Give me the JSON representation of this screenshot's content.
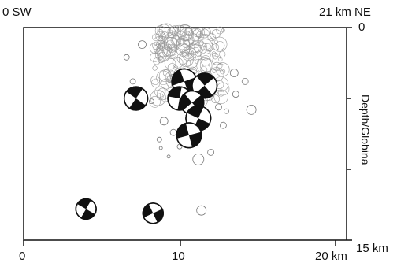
{
  "labels": {
    "top_left": "0 SW",
    "top_right": "21 km NE",
    "right_axis_title": "Depth/Globina",
    "depth_top": "0",
    "depth_bottom": "15 km",
    "x_ticks": [
      "0",
      "10",
      "20 km"
    ]
  },
  "chart_data": {
    "type": "scatter",
    "xlabel": "",
    "ylabel": "Depth/Globina",
    "xlim": [
      0,
      21
    ],
    "ylim": [
      0,
      15
    ],
    "colors": {
      "ink": "#111111",
      "faint": "#9a9a9a"
    },
    "focal_mechanisms": [
      {
        "x": 7.2,
        "depth": 5.0,
        "r": 0.75,
        "angle": 35
      },
      {
        "x": 10.3,
        "depth": 3.8,
        "r": 0.8,
        "angle": -20
      },
      {
        "x": 11.6,
        "depth": 4.1,
        "r": 0.8,
        "angle": 50
      },
      {
        "x": 10.0,
        "depth": 5.0,
        "r": 0.75,
        "angle": 10
      },
      {
        "x": 10.8,
        "depth": 5.3,
        "r": 0.75,
        "angle": -40
      },
      {
        "x": 11.2,
        "depth": 6.4,
        "r": 0.8,
        "angle": 25
      },
      {
        "x": 10.6,
        "depth": 7.6,
        "r": 0.8,
        "angle": -15
      },
      {
        "x": 4.0,
        "depth": 12.8,
        "r": 0.65,
        "angle": 30
      },
      {
        "x": 8.3,
        "depth": 13.1,
        "r": 0.65,
        "angle": -25
      }
    ]
  }
}
